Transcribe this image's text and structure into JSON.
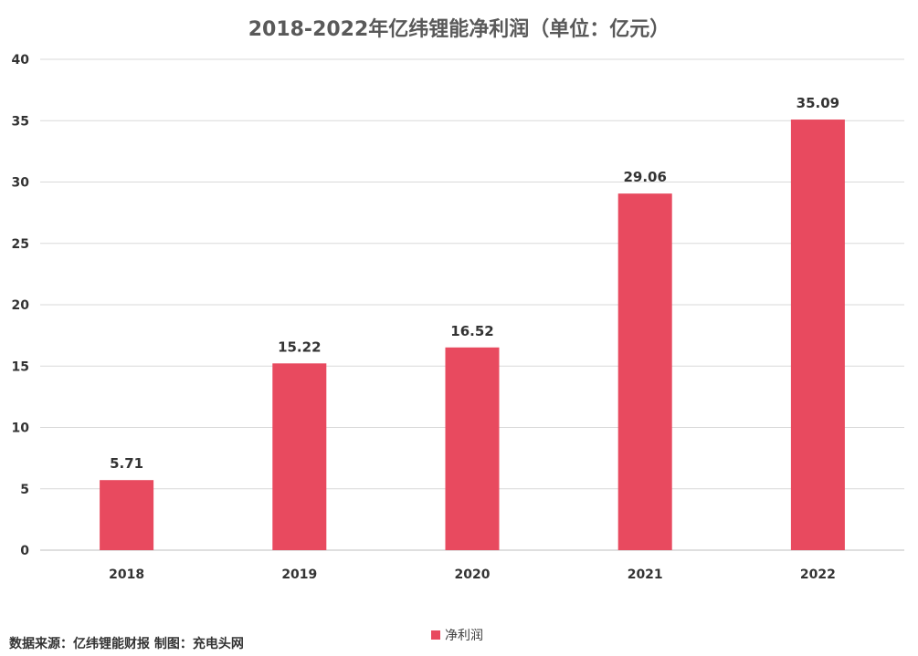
{
  "source_text": "数据来源：亿纬锂能财报  制图：充电头网",
  "chart_data": {
    "type": "bar",
    "title": "2018-2022年亿纬锂能净利润（单位：亿元）",
    "categories": [
      "2018",
      "2019",
      "2020",
      "2021",
      "2022"
    ],
    "series": [
      {
        "name": "净利润",
        "values": [
          5.71,
          15.22,
          16.52,
          29.06,
          35.09
        ],
        "color": "#E84A5F"
      }
    ],
    "y_ticks": [
      "0",
      "5",
      "10",
      "15",
      "20",
      "25",
      "30",
      "35",
      "40"
    ],
    "ylim": [
      0,
      40
    ],
    "xlabel": "",
    "ylabel": "",
    "grid": true,
    "legend_position": "bottom",
    "data_labels": [
      "5.71",
      "15.22",
      "16.52",
      "29.06",
      "35.09"
    ]
  }
}
